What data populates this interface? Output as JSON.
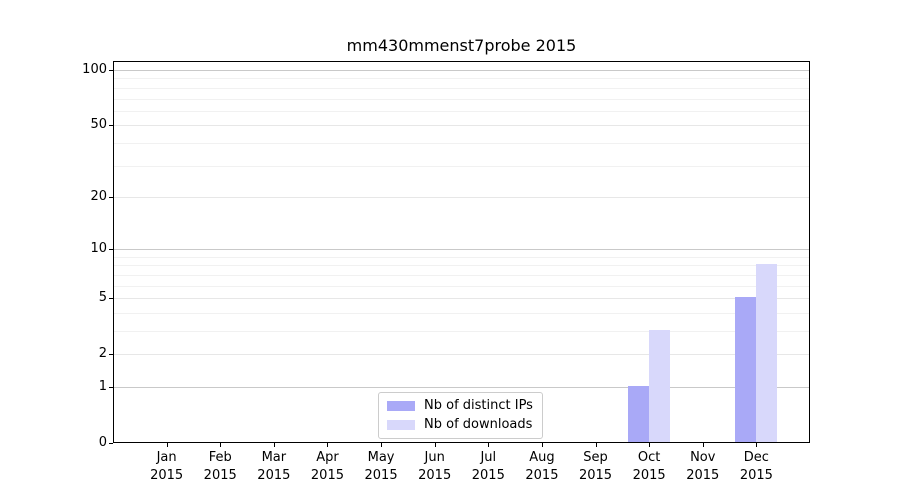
{
  "chart_data": {
    "type": "bar",
    "title": "mm430mmenst7probe 2015",
    "categories": [
      "Jan 2015",
      "Feb 2015",
      "Mar 2015",
      "Apr 2015",
      "May 2015",
      "Jun 2015",
      "Jul 2015",
      "Aug 2015",
      "Sep 2015",
      "Oct 2015",
      "Nov 2015",
      "Dec 2015"
    ],
    "series": [
      {
        "name": "Nb of distinct IPs",
        "color": "#a9a9f7",
        "values": [
          0,
          0,
          0,
          0,
          0,
          0,
          0,
          0,
          0,
          1,
          0,
          5
        ]
      },
      {
        "name": "Nb of downloads",
        "color": "#d8d8fb",
        "values": [
          0,
          0,
          0,
          0,
          0,
          0,
          0,
          0,
          0,
          3,
          0,
          8
        ]
      }
    ],
    "xlabel": "",
    "ylabel": "",
    "yticks": [
      0,
      1,
      2,
      5,
      10,
      20,
      50,
      100
    ],
    "ylim": [
      0,
      112
    ],
    "yscale": "log1p",
    "grid": "horizontal",
    "legend_position": "lower-center-inside"
  },
  "colors": {
    "background": "#ffffff",
    "axis": "#000000",
    "grid_major": "#c9c9c9",
    "grid_mid": "#e7e7e7",
    "grid_minor": "#f1f1f1",
    "legend_border": "#cccccc",
    "bar_distinct_ips": "#a9a9f7",
    "bar_downloads": "#d8d8fb"
  }
}
